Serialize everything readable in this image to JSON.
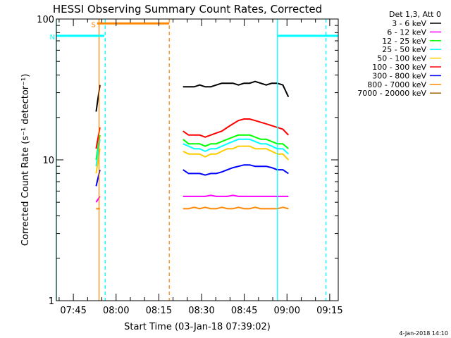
{
  "chart_data": {
    "type": "line",
    "title": "HESSI Observing Summary Count Rates, Corrected",
    "xlabel": "Start Time (03-Jan-18 07:39:02)",
    "ylabel": "Corrected Count Rate (s⁻¹ detector⁻¹)",
    "y_scale": "log",
    "ylim": [
      1,
      100
    ],
    "y_ticks": [
      "1",
      "10",
      "100"
    ],
    "x_start": "07:39:02",
    "x_end": "09:18:00",
    "x_ticks": [
      "07:45",
      "08:00",
      "08:15",
      "08:30",
      "08:45",
      "09:00",
      "09:15"
    ],
    "legend_title": "Det 1,3, Att 0",
    "legend_position": "right",
    "segments": [
      {
        "start": "07:53:00",
        "end": "07:54:20"
      },
      {
        "start": "08:23:30",
        "end": "09:00:30"
      }
    ],
    "series": [
      {
        "name": "3 - 6 keV",
        "color": "#000000",
        "values": [
          22,
          34,
          33,
          33,
          33,
          34,
          33,
          33,
          34,
          35,
          35,
          35,
          34,
          35,
          35,
          36,
          35,
          34,
          35,
          35,
          34,
          28
        ]
      },
      {
        "name": "6 - 12 keV",
        "color": "#ff00ff",
        "values": [
          5.0,
          5.5,
          5.5,
          5.5,
          5.5,
          5.5,
          5.5,
          5.6,
          5.5,
          5.5,
          5.5,
          5.6,
          5.5,
          5.5,
          5.5,
          5.5,
          5.5,
          5.5,
          5.5,
          5.5,
          5.5,
          5.5
        ]
      },
      {
        "name": "12 - 25 keV",
        "color": "#00ff00",
        "values": [
          10,
          15,
          14,
          13,
          13,
          13,
          12.5,
          13,
          13,
          13.5,
          14,
          14.5,
          15,
          15,
          15,
          14.5,
          14,
          14,
          13.5,
          13,
          13,
          12
        ]
      },
      {
        "name": "25 - 50 keV",
        "color": "#00ffff",
        "values": [
          9,
          14,
          13,
          12.5,
          12,
          12,
          11.5,
          12,
          12,
          12.5,
          13,
          13.5,
          14,
          14,
          14,
          13.5,
          13,
          13,
          12.5,
          12,
          12,
          11
        ]
      },
      {
        "name": "50 - 100 keV",
        "color": "#ffcc00",
        "values": [
          8,
          12,
          11.5,
          11,
          11,
          11,
          10.5,
          11,
          11,
          11.5,
          12,
          12,
          12.5,
          12.5,
          12.5,
          12,
          12,
          12,
          11.5,
          11,
          11,
          10
        ]
      },
      {
        "name": "100 - 300 keV",
        "color": "#ff0000",
        "values": [
          12,
          17,
          16,
          15,
          15,
          15,
          14.5,
          15,
          15.5,
          16,
          17,
          18,
          19,
          19.5,
          19.5,
          19,
          18.5,
          18,
          17.5,
          17,
          16.5,
          15
        ]
      },
      {
        "name": "300 - 800 keV",
        "color": "#0000ff",
        "values": [
          6.5,
          8.5,
          8.5,
          8,
          8,
          8,
          7.8,
          8,
          8,
          8.2,
          8.5,
          8.8,
          9,
          9.2,
          9.2,
          9,
          9,
          9,
          8.8,
          8.5,
          8.5,
          8
        ]
      },
      {
        "name": "800 - 7000 keV",
        "color": "#ff8800",
        "values": [
          4.5,
          4.5,
          4.5,
          4.5,
          4.6,
          4.5,
          4.6,
          4.5,
          4.5,
          4.6,
          4.5,
          4.5,
          4.6,
          4.5,
          4.5,
          4.6,
          4.5,
          4.5,
          4.5,
          4.5,
          4.6,
          4.5
        ]
      },
      {
        "name": "7000 - 20000 keV",
        "color": "#996600",
        "values": []
      }
    ],
    "annotations": [
      {
        "label": "S",
        "color": "#ff8800",
        "from": "07:53:20",
        "to": "08:18:40",
        "y": 93
      },
      {
        "label": "N",
        "color": "#00ffff",
        "from": "07:39:02",
        "to": "07:55:50",
        "y": 76
      },
      {
        "label": "",
        "color": "#00ffff",
        "from": "08:56:40",
        "to": "09:18:00",
        "y": 76
      }
    ],
    "vlines": [
      {
        "time": "07:39:02",
        "color": "#00ffff",
        "style": "solid"
      },
      {
        "time": "07:54:00",
        "color": "#ff8800",
        "style": "solid"
      },
      {
        "time": "07:56:10",
        "color": "#00ffff",
        "style": "dashed"
      },
      {
        "time": "08:18:40",
        "color": "#ff8800",
        "style": "dashed"
      },
      {
        "time": "08:56:40",
        "color": "#00ffff",
        "style": "solid"
      },
      {
        "time": "09:13:40",
        "color": "#00ffff",
        "style": "dashed"
      }
    ]
  },
  "footer": {
    "timestamp": "4-Jan-2018 14:10"
  }
}
